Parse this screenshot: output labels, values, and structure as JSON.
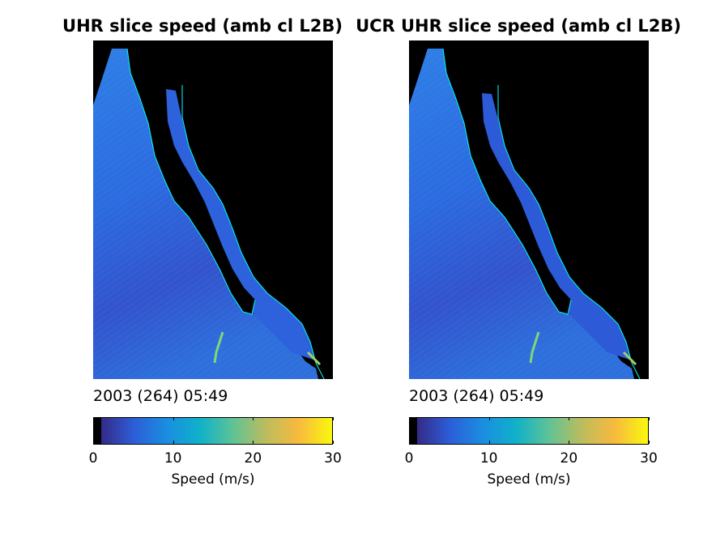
{
  "chart_data": [
    {
      "type": "heatmap",
      "title": "UHR slice speed (amb cl L2B)",
      "timestamp": "2003 (264) 05:49",
      "colorbar": {
        "label": "Speed (m/s)",
        "range": [
          0,
          30
        ],
        "ticks": [
          "0",
          "10",
          "20",
          "30"
        ],
        "colormap": [
          "#000000",
          "#352a87",
          "#2c5ed8",
          "#1a8ee0",
          "#0fb1c9",
          "#5ec396",
          "#bdbc5d",
          "#f8ba3d",
          "#f9f80e"
        ]
      },
      "typical_speed_range": [
        3,
        8
      ],
      "background_color": "#000000",
      "coastline_color": "#00ffff"
    },
    {
      "type": "heatmap",
      "title": "UCR UHR slice speed (amb cl L2B)",
      "timestamp": "2003 (264) 05:49",
      "colorbar": {
        "label": "Speed (m/s)",
        "range": [
          0,
          30
        ],
        "ticks": [
          "0",
          "10",
          "20",
          "30"
        ],
        "colormap": [
          "#000000",
          "#352a87",
          "#2c5ed8",
          "#1a8ee0",
          "#0fb1c9",
          "#5ec396",
          "#bdbc5d",
          "#f8ba3d",
          "#f9f80e"
        ]
      },
      "typical_speed_range": [
        3,
        8
      ],
      "background_color": "#000000",
      "coastline_color": "#00ffff"
    }
  ]
}
